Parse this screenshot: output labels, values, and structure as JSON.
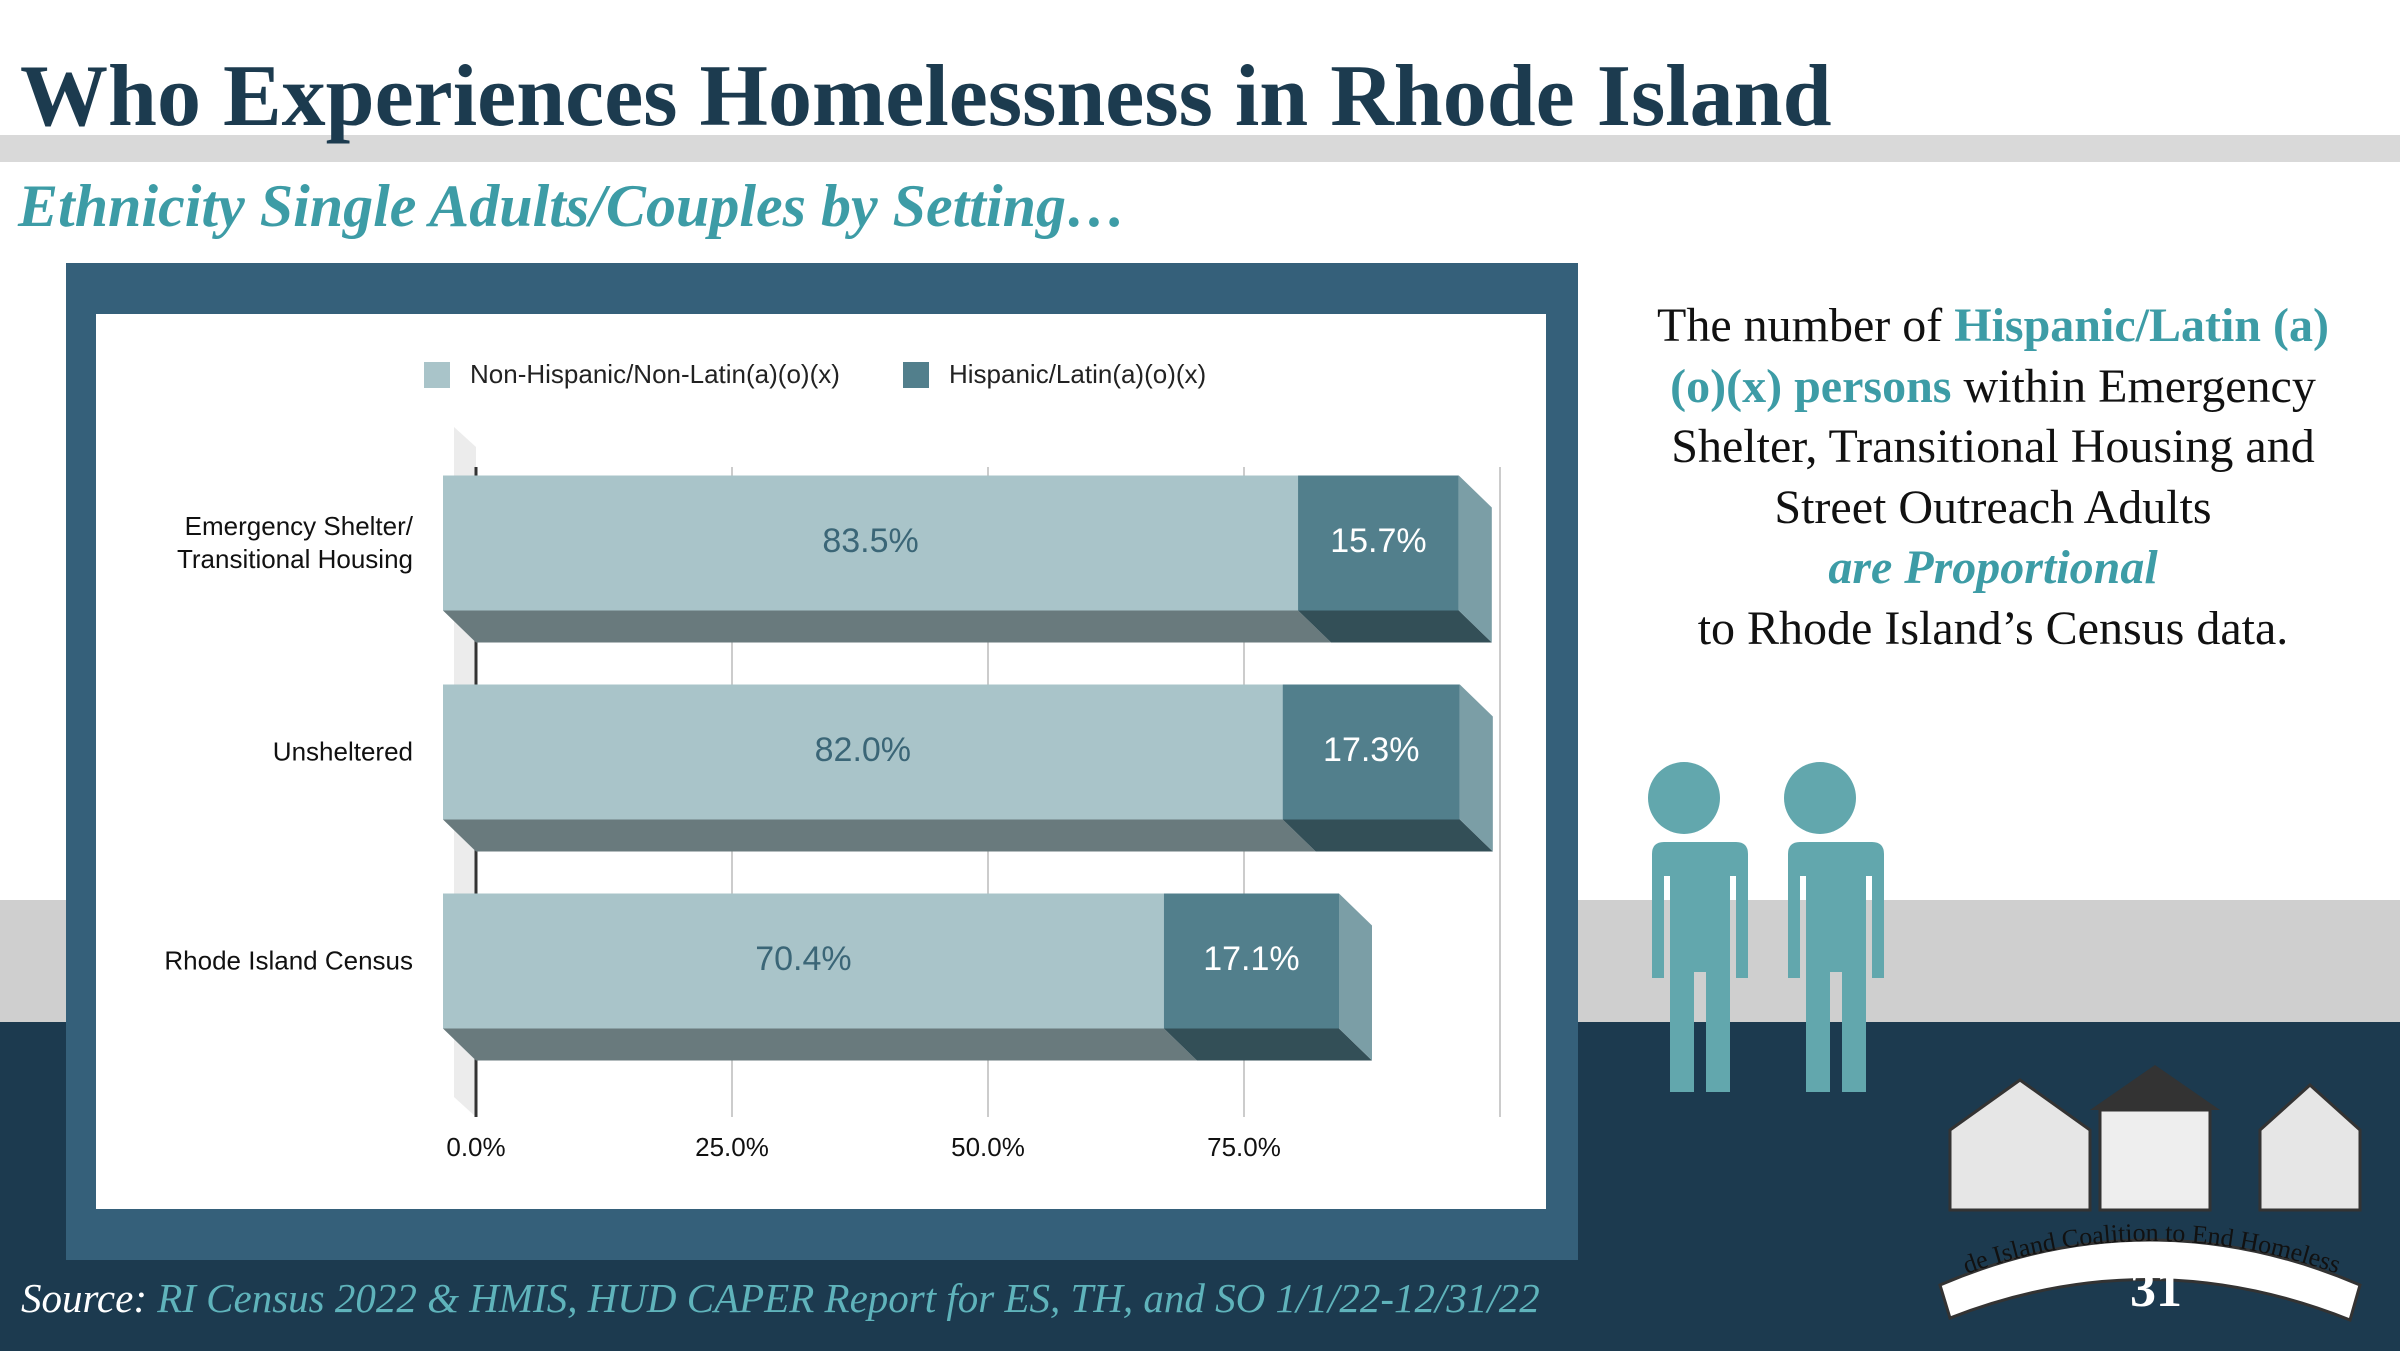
{
  "title": "Who Experiences Homelessness in Rhode Island",
  "subtitle": "Ethnicity Single Adults/Couples by Setting…",
  "callout": {
    "before": "The number of ",
    "highlight": "Hispanic/Latin (a)(o)(x) persons",
    "after": " within Emergency Shelter, Transitional Housing and Street Outreach Adults",
    "emphasis": "are Proportional",
    "closing": "to Rhode Island’s Census data."
  },
  "source": {
    "label": "Source:",
    "text": "RI Census 2022 & HMIS, HUD CAPER Report for ES, TH, and SO 1/1/22-12/31/22"
  },
  "logo_text": "Rhode Island Coalition to End Homelessness",
  "page_number": "31",
  "chart_data": {
    "type": "bar",
    "orientation": "horizontal",
    "stacked": true,
    "categories": [
      "Emergency Shelter/\nTransitional Housing",
      "Unsheltered",
      "Rhode Island Census"
    ],
    "series": [
      {
        "name": "Non-Hispanic/Non-Latin(a)(o)(x)",
        "color": "#a9c4c9",
        "values": [
          83.5,
          82.0,
          70.4
        ],
        "value_labels": [
          "83.5%",
          "82.0%",
          "70.4%"
        ]
      },
      {
        "name": "Hispanic/Latin(a)(o)(x)",
        "color": "#527f8c",
        "values": [
          15.7,
          17.3,
          17.1
        ],
        "value_labels": [
          "15.7%",
          "17.3%",
          "17.1%"
        ]
      }
    ],
    "xlim": [
      0,
      100
    ],
    "xticks": [
      {
        "value": 0,
        "label": "0.0%"
      },
      {
        "value": 25,
        "label": "25.0%"
      },
      {
        "value": 50,
        "label": "50.0%"
      },
      {
        "value": 75,
        "label": "75.0%"
      }
    ],
    "grid": true,
    "legend": "top"
  }
}
